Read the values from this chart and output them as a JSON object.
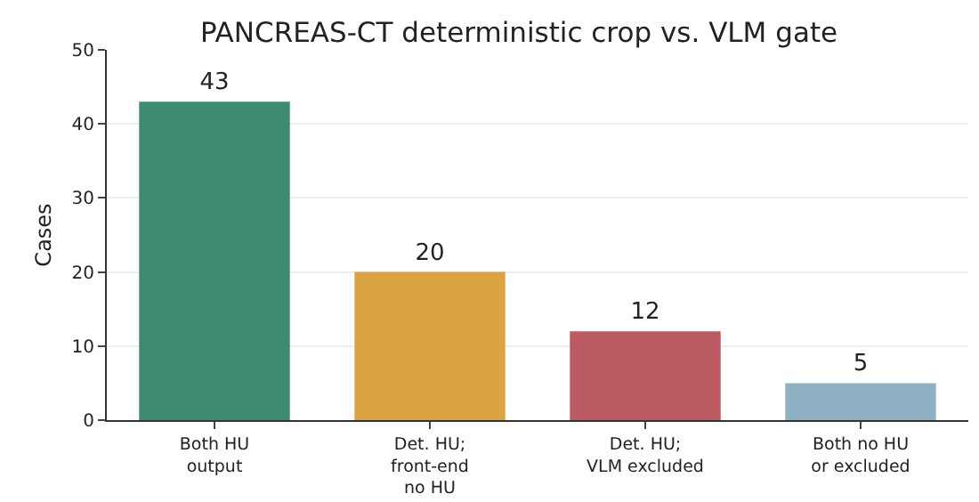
{
  "chart_data": {
    "type": "bar",
    "title": "PANCREAS-CT deterministic crop vs. VLM gate",
    "ylabel": "Cases",
    "categories": [
      "Both HU\noutput",
      "Det. HU;\nfront-end\nno HU",
      "Det. HU;\nVLM excluded",
      "Both no HU\nor excluded"
    ],
    "values": [
      43,
      20,
      12,
      5
    ],
    "colors": [
      "#3d8c72",
      "#d9a441",
      "#bb5a61",
      "#8fb1c4"
    ],
    "ylim": [
      0,
      50
    ],
    "yticks": [
      0,
      10,
      20,
      30,
      40,
      50
    ],
    "grid": "y",
    "data_labels": true
  }
}
